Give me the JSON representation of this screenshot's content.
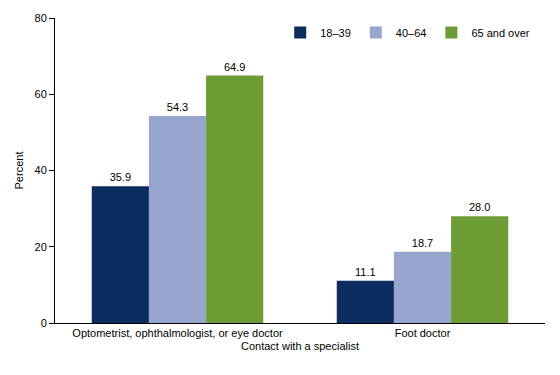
{
  "chart_data": {
    "type": "bar",
    "x_label": "Contact with a specialist",
    "y_label": "Percent",
    "categories": [
      "Optometrist, ophthalmologist, or eye doctor",
      "Foot doctor"
    ],
    "series": [
      {
        "name": "18–39",
        "color": "#0c2b5e",
        "values": [
          35.9,
          11.1
        ],
        "value_labels": [
          "35.9",
          "11.1"
        ]
      },
      {
        "name": "40–64",
        "color": "#98a5cc",
        "values": [
          54.3,
          18.7
        ],
        "value_labels": [
          "54.3",
          "18.7"
        ]
      },
      {
        "name": "65 and over",
        "color": "#6e9c34",
        "values": [
          64.9,
          28.0
        ],
        "value_labels": [
          "64.9",
          "28.0"
        ]
      }
    ],
    "ylim": [
      0,
      80
    ],
    "yticks": [
      0,
      20,
      40,
      60,
      80
    ],
    "grid": false,
    "legend": "top right",
    "data_labels": true
  }
}
